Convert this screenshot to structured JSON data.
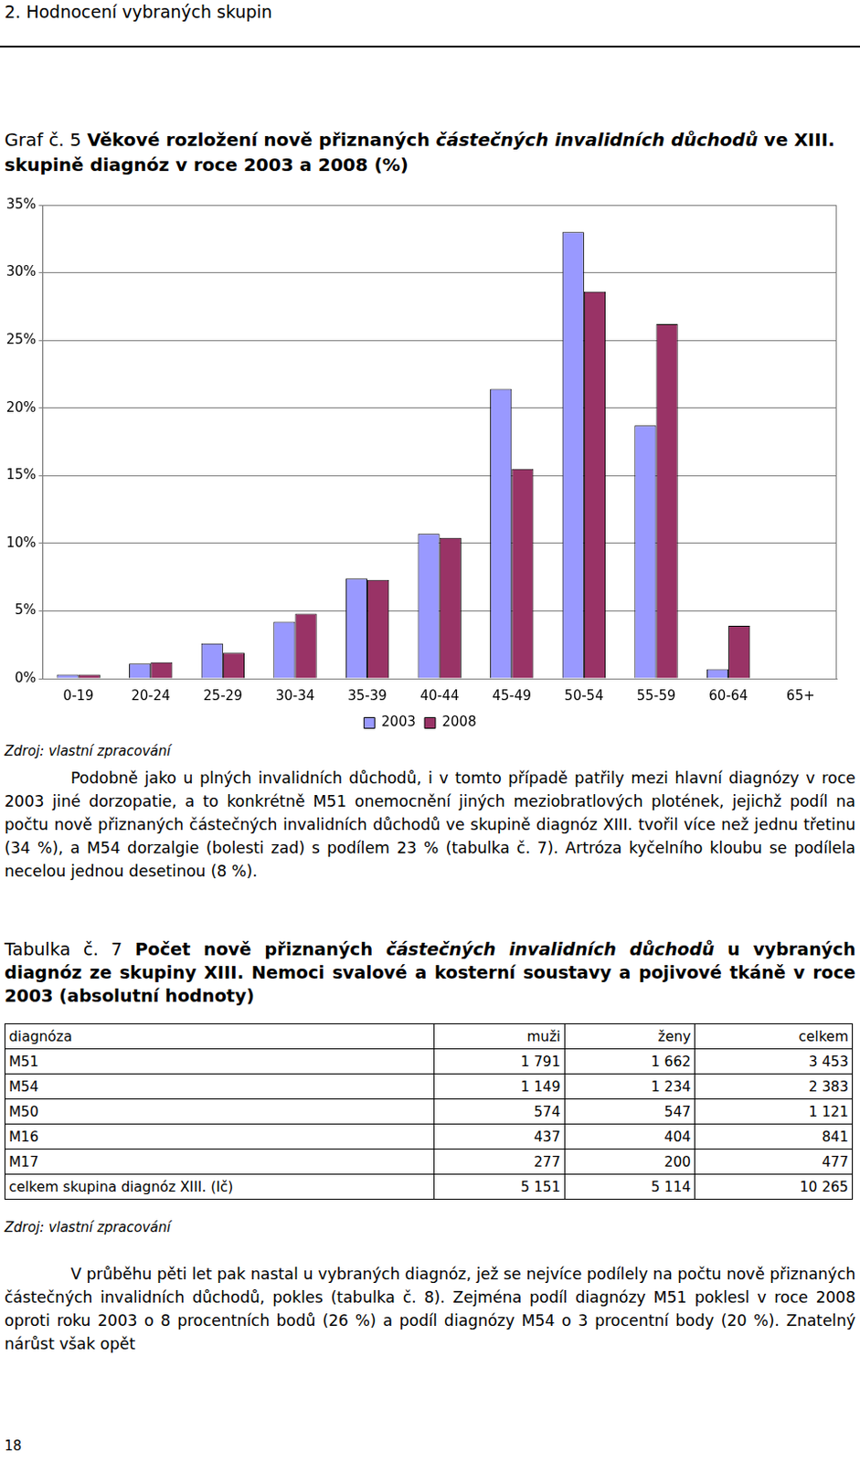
{
  "header": "2. Hodnocení vybraných skupin",
  "chart_caption": [
    {
      "text": "Graf č. 5 ",
      "style": "normal"
    },
    {
      "text": "Věkové rozložení nově přiznaných ",
      "style": "bold"
    },
    {
      "text": "částečných invalidních důchodů",
      "style": "bold italic"
    },
    {
      "text": " ve XIII. skupině diagnóz v roce 2003 a 2008 (%)",
      "style": "bold"
    }
  ],
  "chart_data": {
    "type": "bar",
    "categories": [
      "0-19",
      "20-24",
      "25-29",
      "30-34",
      "35-39",
      "40-44",
      "45-49",
      "50-54",
      "55-59",
      "60-64",
      "65+"
    ],
    "series": [
      {
        "name": "2003",
        "color": "#9999ff",
        "values": [
          0.3,
          1.1,
          2.6,
          4.2,
          7.4,
          10.7,
          21.4,
          33.0,
          18.7,
          0.7,
          0
        ]
      },
      {
        "name": "2008",
        "color": "#993366",
        "values": [
          0.3,
          1.2,
          1.9,
          4.8,
          7.3,
          10.4,
          15.5,
          28.6,
          26.2,
          3.9,
          0
        ]
      }
    ],
    "ylim": [
      0,
      35
    ],
    "yticks": [
      {
        "value": 0,
        "label": "0%"
      },
      {
        "value": 5,
        "label": "5%"
      },
      {
        "value": 10,
        "label": "10%"
      },
      {
        "value": 15,
        "label": "15%"
      },
      {
        "value": 20,
        "label": "20%"
      },
      {
        "value": 25,
        "label": "25%"
      },
      {
        "value": 30,
        "label": "30%"
      },
      {
        "value": 35,
        "label": "35%"
      }
    ],
    "grid": true,
    "legend": "bottom"
  },
  "chart_source": "Zdroj: vlastní zpracování",
  "paragraph_1": "Podobně jako u plných invalidních důchodů, i v tomto případě patřily mezi hlavní diagnózy v roce 2003 jiné dorzopatie, a to konkrétně M51 onemocnění jiných meziobratlových plotének, jejichž podíl na počtu nově přiznaných částečných invalidních důchodů ve skupině diagnóz XIII. tvořil více než jednu třetinu (34 %), a M54 dorzalgie (bolesti zad) s podílem 23 % (tabulka č. 7). Artróza kyčelního kloubu se podílela necelou jednou desetinou (8 %).",
  "table_caption": [
    {
      "text": "Tabulka č. 7 ",
      "style": "normal"
    },
    {
      "text": "Počet nově přiznaných ",
      "style": "bold"
    },
    {
      "text": "částečných invalidních důchodů",
      "style": "bold italic"
    },
    {
      "text": " u vybraných diagnóz ze skupiny XIII. Nemoci svalové a kosterní soustavy a pojivové tkáně v roce 2003 (absolutní hodnoty)",
      "style": "bold"
    }
  ],
  "table": {
    "header": [
      "diagnóza",
      "muži",
      "ženy",
      "celkem"
    ],
    "rows": [
      [
        "M51",
        "1 791",
        "1 662",
        "3 453"
      ],
      [
        "M54",
        "1 149",
        "1 234",
        "2 383"
      ],
      [
        "M50",
        "574",
        "547",
        "1 121"
      ],
      [
        "M16",
        "437",
        "404",
        "841"
      ],
      [
        "M17",
        "277",
        "200",
        "477"
      ],
      [
        "celkem skupina diagnóz XIII. (Ič)",
        "5 151",
        "5 114",
        "10 265"
      ]
    ]
  },
  "table_source": "Zdroj: vlastní zpracování",
  "paragraph_2": "V průběhu pěti let pak nastal u vybraných diagnóz, jež se nejvíce podílely na počtu nově přiznaných částečných invalidních důchodů, pokles (tabulka č. 8). Zejména podíl diagnózy M51 poklesl v roce 2008 oproti roku 2003 o 8 procentních bodů (26 %) a podíl diagnózy M54 o 3 procentní body (20 %). Znatelný nárůst však opět",
  "page_number": "18"
}
